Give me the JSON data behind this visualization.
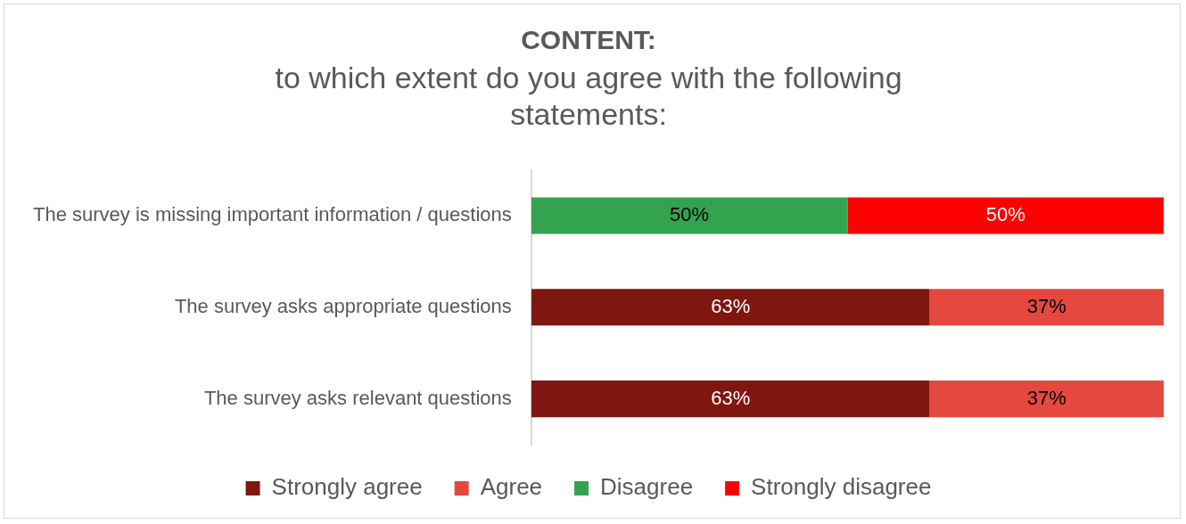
{
  "chart_data": {
    "type": "bar",
    "orientation": "horizontal",
    "stacked": true,
    "title": "CONTENT:",
    "subtitle": "to which extent do you agree with the following statements:",
    "categories": [
      "The survey is missing important information / questions",
      "The survey asks appropriate questions",
      "The survey asks relevant questions"
    ],
    "series": [
      {
        "name": "Strongly agree",
        "color": "#7f1710",
        "values": [
          null,
          63,
          63
        ],
        "value_labels": [
          null,
          "63%",
          "63%"
        ]
      },
      {
        "name": "Agree",
        "color": "#e5483e",
        "values": [
          null,
          37,
          37
        ],
        "value_labels": [
          null,
          "37%",
          "37%"
        ]
      },
      {
        "name": "Disagree",
        "color": "#34a350",
        "values": [
          50,
          null,
          null
        ],
        "value_labels": [
          "50%",
          null,
          null
        ]
      },
      {
        "name": "Strongly disagree",
        "color": "#ff0000",
        "values": [
          50,
          null,
          null
        ],
        "value_labels": [
          "50%",
          null,
          null
        ]
      }
    ],
    "grid": false,
    "legend": "bottom"
  }
}
